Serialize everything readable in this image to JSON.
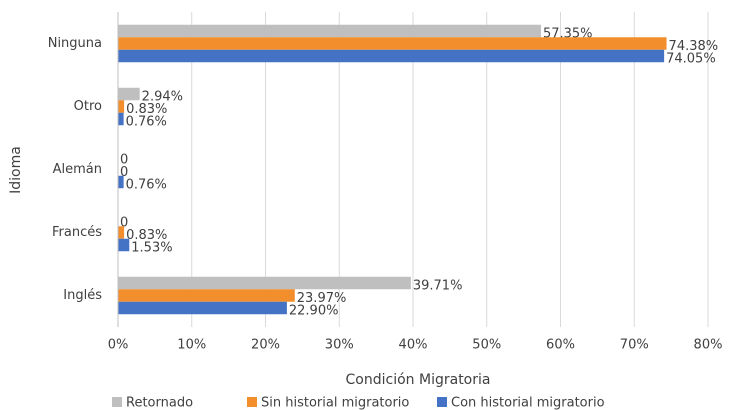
{
  "chart_data": {
    "type": "barh",
    "categories": [
      "Ninguna",
      "Otro",
      "Alemán",
      "Francés",
      "Inglés"
    ],
    "series": [
      {
        "name": "Retornado",
        "color": "#bfbfbf",
        "values": [
          57.35,
          2.94,
          0,
          0,
          39.71
        ],
        "value_labels": [
          "57.35%",
          "2.94%",
          "0",
          "0",
          "39.71%"
        ]
      },
      {
        "name": "Sin historial migratorio",
        "color": "#f28e2b",
        "values": [
          74.38,
          0.83,
          0,
          0.83,
          23.97
        ],
        "value_labels": [
          "74.38%",
          "0.83%",
          "0",
          "0.83%",
          "23.97%"
        ]
      },
      {
        "name": "Con historial migratorio",
        "color": "#4472c4",
        "values": [
          74.05,
          0.76,
          0.76,
          1.53,
          22.9
        ],
        "value_labels": [
          "74.05%",
          "0.76%",
          "0.76%",
          "1.53%",
          "22.90%"
        ]
      }
    ],
    "xlim": [
      0,
      80
    ],
    "xticks": [
      {
        "value": 0,
        "label": "0%"
      },
      {
        "value": 10,
        "label": "10%"
      },
      {
        "value": 20,
        "label": "20%"
      },
      {
        "value": 30,
        "label": "30%"
      },
      {
        "value": 40,
        "label": "40%"
      },
      {
        "value": 50,
        "label": "50%"
      },
      {
        "value": 60,
        "label": "60%"
      },
      {
        "value": 70,
        "label": "70%"
      },
      {
        "value": 80,
        "label": "80%"
      }
    ],
    "xlabel": "Condición Migratoria",
    "ylabel": "Idioma",
    "grid": true,
    "legend": "bottom"
  }
}
